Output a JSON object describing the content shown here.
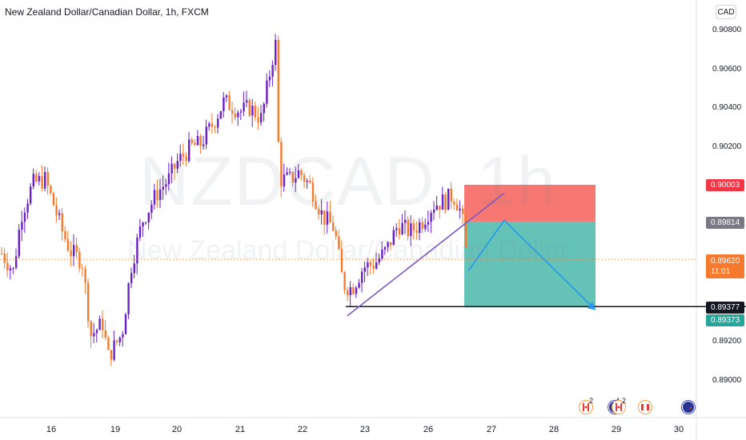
{
  "header": {
    "symbol_title": "New Zealand Dollar/Canadian Dollar, 1h, FXCM",
    "currency_button": "CAD"
  },
  "watermark": {
    "ticker": "NZDCAD, 1h",
    "name": "New Zealand Dollar/Canadian Dollar"
  },
  "price_tags": {
    "stop_level": "0.90003",
    "entry_level": "0.89814",
    "last_price": "0.89620",
    "countdown": "11:01",
    "horizontal_line": "0.89377",
    "target_level": "0.89373"
  },
  "events": [
    {
      "icon": "canada-flag-icon",
      "count": "2"
    },
    {
      "icon": "new-zealand-flag-icon",
      "count": "4"
    },
    {
      "icon": "canada-flag-icon",
      "count": "2"
    },
    {
      "icon": "canada-flag-icon",
      "count": ""
    },
    {
      "icon": "new-zealand-flag-icon",
      "count": ""
    }
  ],
  "colors": {
    "bull": "#6a1fc7",
    "bear": "#f57a2e",
    "stop_zone": "#f7716b",
    "target_zone": "#5dbfb3",
    "trendline": "#7e57c2",
    "projection": "#2196f3",
    "last_price": "#f57a2e",
    "target_tag": "#26a69a",
    "entry_tag": "#787b86",
    "stop_tag": "#f23645"
  },
  "chart_data": {
    "type": "candlestick",
    "title": "New Zealand Dollar/Canadian Dollar, 1h, FXCM",
    "y_ticks": [
      "0.90800",
      "0.90600",
      "0.90400",
      "0.90200",
      "0.89200",
      "0.89000"
    ],
    "x_ticks": [
      "16",
      "19",
      "20",
      "21",
      "22",
      "23",
      "26",
      "27",
      "28",
      "29",
      "30"
    ],
    "ylim": [
      0.8888,
      0.9093
    ],
    "path": [
      [
        1.0,
        0.8965
      ],
      [
        15.5,
        0.8956
      ],
      [
        25.5,
        0.8985
      ],
      [
        40.0,
        0.9001
      ],
      [
        55.0,
        0.9003
      ],
      [
        66.0,
        0.899
      ],
      [
        77.0,
        0.8976
      ],
      [
        87.0,
        0.8966
      ],
      [
        101.5,
        0.8961
      ],
      [
        112.5,
        0.8923
      ],
      [
        127.0,
        0.8929
      ],
      [
        134.0,
        0.8912
      ],
      [
        151.5,
        0.8924
      ],
      [
        162.5,
        0.8958
      ],
      [
        177.0,
        0.8982
      ],
      [
        195.0,
        0.8996
      ],
      [
        209.5,
        0.9003
      ],
      [
        220.5,
        0.9012
      ],
      [
        238.0,
        0.902
      ],
      [
        249.0,
        0.9021
      ],
      [
        264.0,
        0.9031
      ],
      [
        278.5,
        0.9043
      ],
      [
        300.0,
        0.9038
      ],
      [
        311.0,
        0.904
      ],
      [
        325.5,
        0.9034
      ],
      [
        340.0,
        0.9067
      ],
      [
        344.0,
        0.9074
      ],
      [
        347.5,
        0.9003
      ],
      [
        362.0,
        0.9003
      ],
      [
        373.0,
        0.9007
      ],
      [
        387.5,
        0.8999
      ],
      [
        402.0,
        0.8984
      ],
      [
        416.5,
        0.8978
      ],
      [
        427.5,
        0.8949
      ],
      [
        438.5,
        0.8947
      ],
      [
        453.0,
        0.8958
      ],
      [
        467.5,
        0.896
      ],
      [
        482.0,
        0.8967
      ],
      [
        496.5,
        0.898
      ],
      [
        511.0,
        0.8976
      ],
      [
        525.5,
        0.8981
      ],
      [
        540.0,
        0.899
      ],
      [
        554.5,
        0.8992
      ],
      [
        565.0,
        0.8995
      ],
      [
        572.5,
        0.8989
      ],
      [
        578.0,
        0.8979
      ],
      [
        581.5,
        0.8962
      ]
    ],
    "position": {
      "entry": 0.89814,
      "stop": 0.90003,
      "target": 0.89373,
      "start_x": 580,
      "end_x": 744
    },
    "trendline": [
      [
        0.8933,
        434
      ],
      [
        0.8996,
        630
      ]
    ],
    "horizontal_line": 0.89377,
    "last_price": 0.8962,
    "projection": [
      [
        585,
        0.8956
      ],
      [
        630,
        0.8982
      ],
      [
        744,
        0.8936
      ]
    ]
  }
}
